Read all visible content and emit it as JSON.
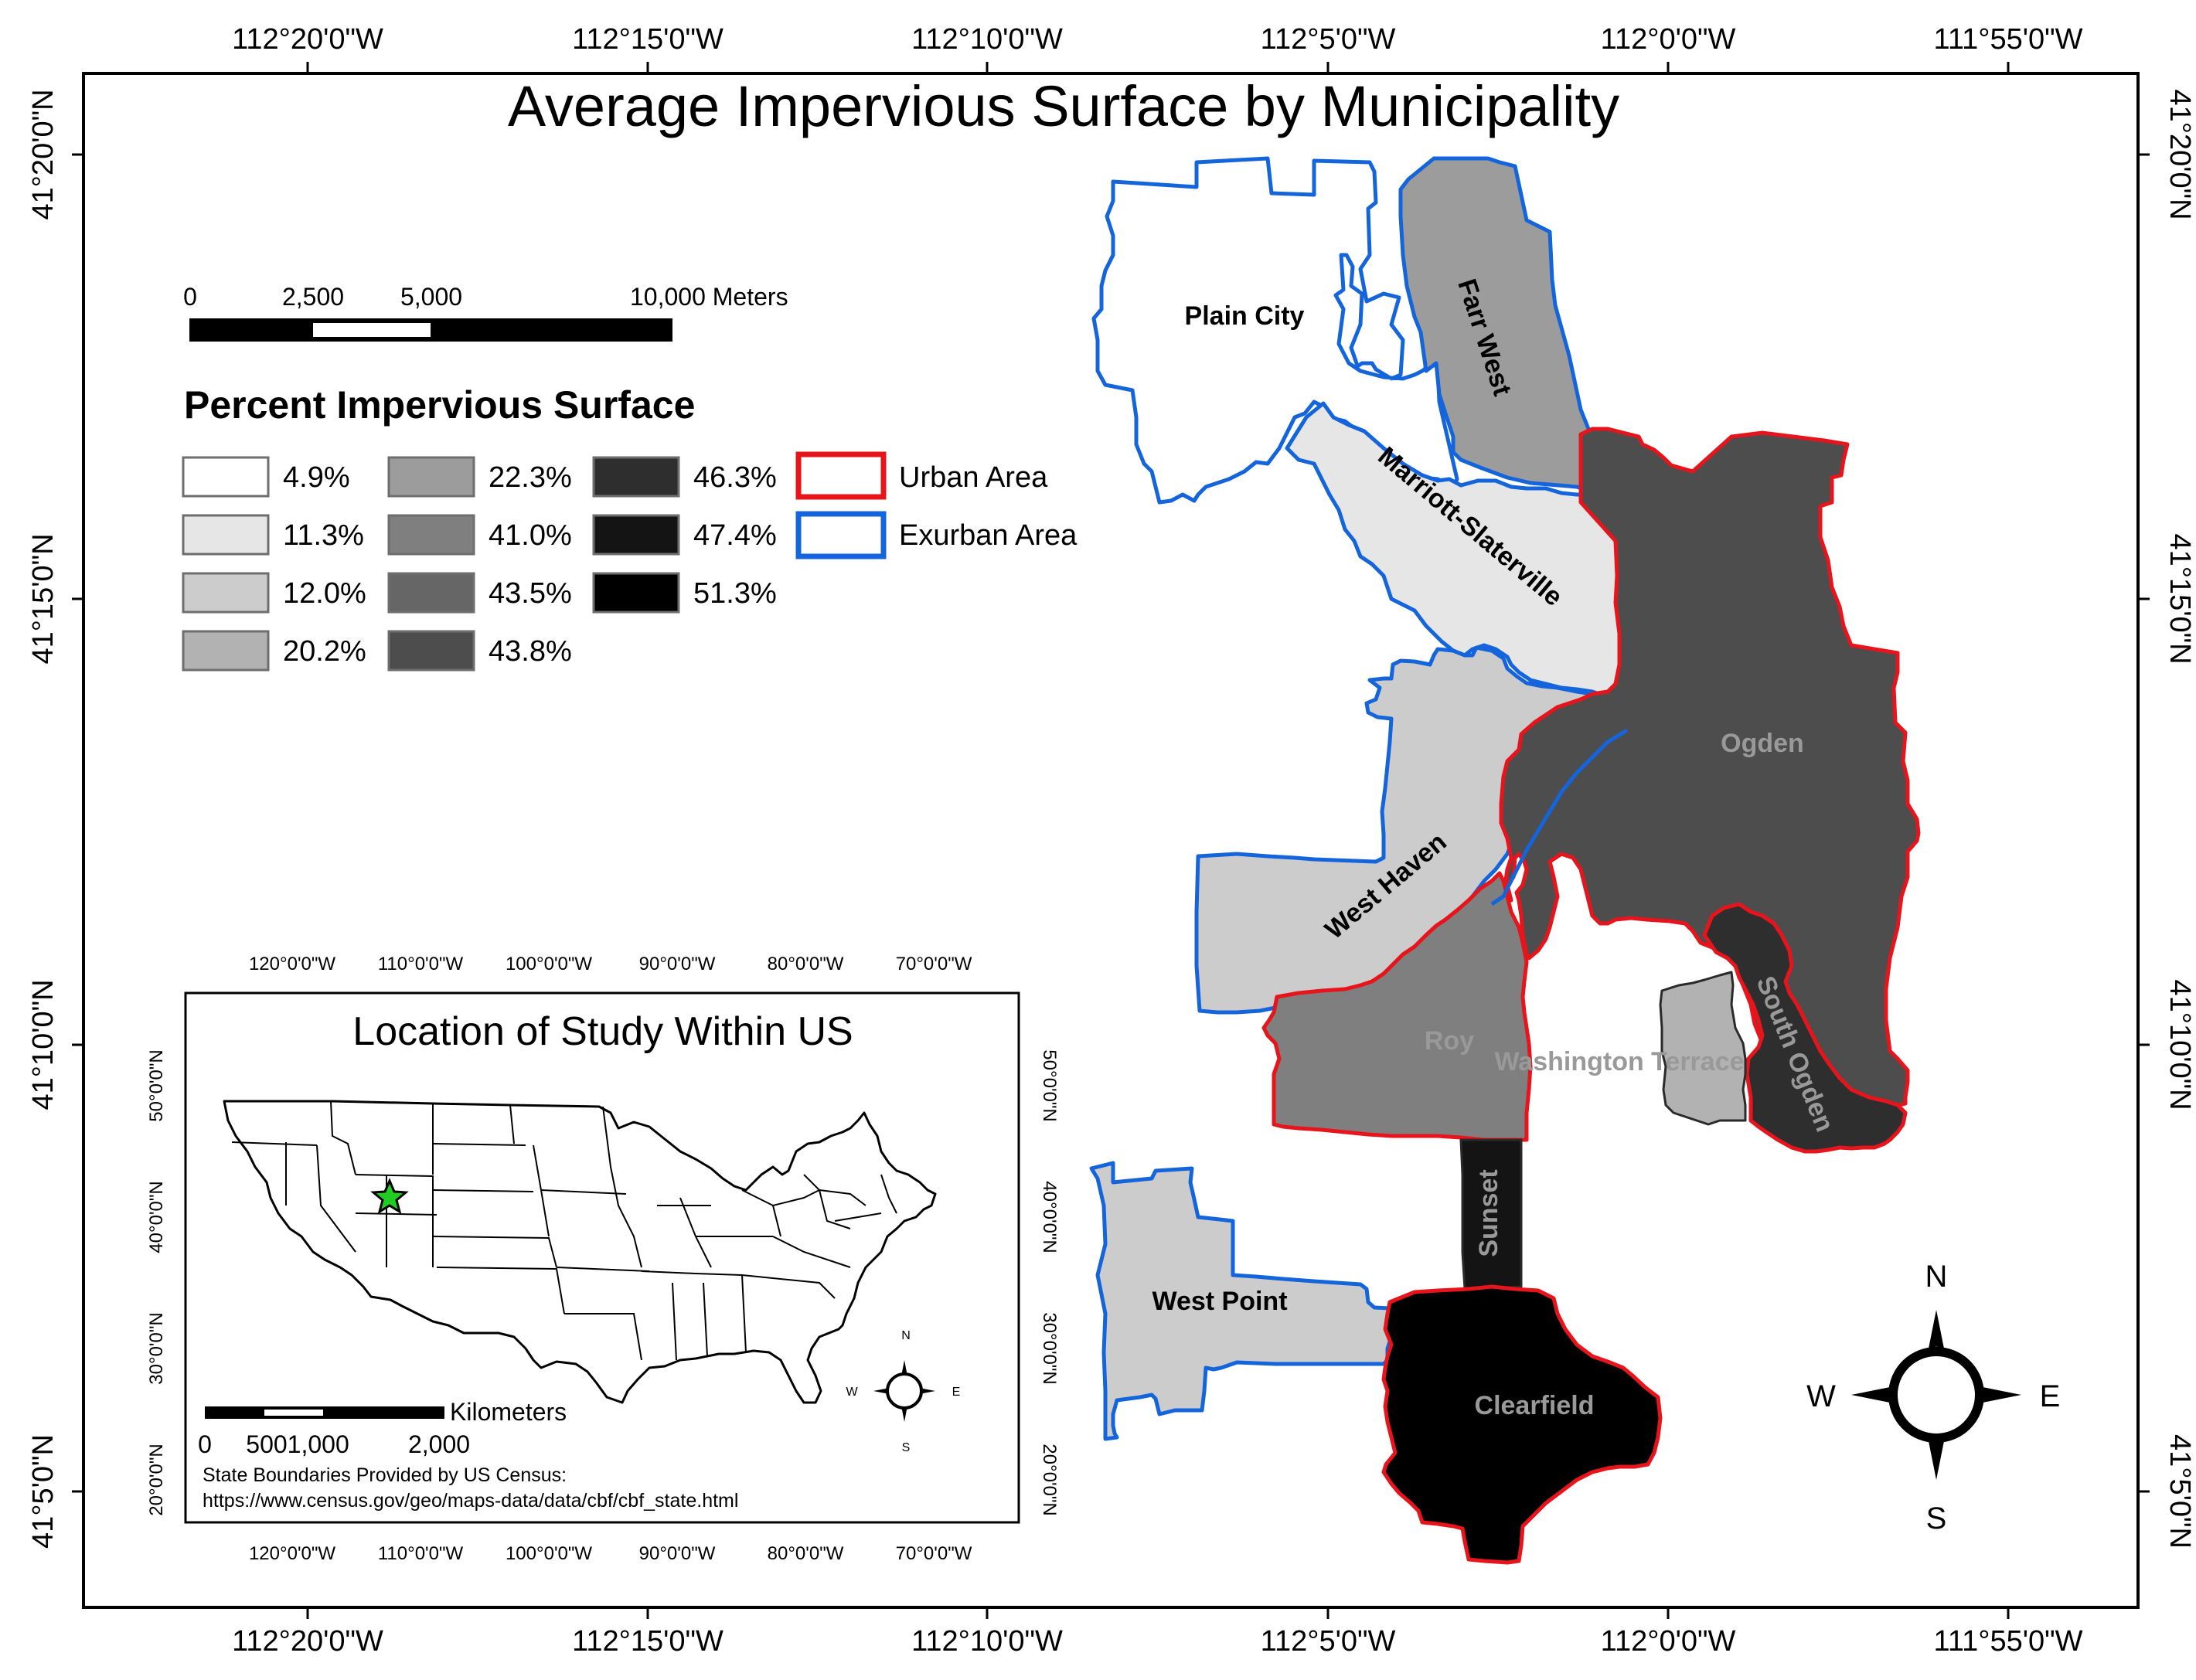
{
  "title": "Average Impervious Surface by Municipality",
  "graticule": {
    "top_labels": [
      "112°20'0\"W",
      "112°15'0\"W",
      "112°10'0\"W",
      "112°5'0\"W",
      "112°0'0\"W",
      "111°55'0\"W"
    ],
    "bottom_labels": [
      "112°20'0\"W",
      "112°15'0\"W",
      "112°10'0\"W",
      "112°5'0\"W",
      "112°0'0\"W",
      "111°55'0\"W"
    ],
    "left_labels": [
      "41°20'0\"N",
      "41°15'0\"N",
      "41°10'0\"N",
      "41°5'0\"N"
    ],
    "right_labels": [
      "41°20'0\"N",
      "41°15'0\"N",
      "41°10'0\"N",
      "41°5'0\"N"
    ]
  },
  "scale_bar": {
    "ticks": [
      "0",
      "2,500",
      "5,000",
      "10,000 Meters"
    ]
  },
  "legend": {
    "title": "Percent Impervious Surface",
    "classes": [
      {
        "label": "4.9%",
        "color": "#ffffff"
      },
      {
        "label": "11.3%",
        "color": "#e6e6e6"
      },
      {
        "label": "12.0%",
        "color": "#cccccc"
      },
      {
        "label": "20.2%",
        "color": "#b2b2b2"
      },
      {
        "label": "22.3%",
        "color": "#9c9c9c"
      },
      {
        "label": "41.0%",
        "color": "#7f7f7f"
      },
      {
        "label": "43.5%",
        "color": "#666666"
      },
      {
        "label": "43.8%",
        "color": "#4d4d4d"
      },
      {
        "label": "46.3%",
        "color": "#2e2e2e"
      },
      {
        "label": "47.4%",
        "color": "#141414"
      },
      {
        "label": "51.3%",
        "color": "#000000"
      }
    ],
    "outlines": [
      {
        "label": "Urban Area",
        "color": "#e8141c"
      },
      {
        "label": "Exurban Area",
        "color": "#1464dc"
      }
    ]
  },
  "municipalities": {
    "plain_city": "Plain City",
    "farr_west": "Farr West",
    "marriott": "Marriott-Slaterville",
    "ogden": "Ogden",
    "west_haven": "West Haven",
    "roy": "Roy",
    "washington_terrace": "Washington Terrace",
    "south_ogden": "South Ogden",
    "sunset": "Sunset",
    "west_point": "West Point",
    "clearfield": "Clearfield"
  },
  "compass": {
    "n": "N",
    "s": "S",
    "e": "E",
    "w": "W"
  },
  "inset": {
    "title": "Location of Study Within US",
    "top_labels": [
      "120°0'0\"W",
      "110°0'0\"W",
      "100°0'0\"W",
      "90°0'0\"W",
      "80°0'0\"W",
      "70°0'0\"W"
    ],
    "bottom_labels": [
      "120°0'0\"W",
      "110°0'0\"W",
      "100°0'0\"W",
      "90°0'0\"W",
      "80°0'0\"W",
      "70°0'0\"W"
    ],
    "left_labels": [
      "50°0'0\"N",
      "40°0'0\"N",
      "30°0'0\"N",
      "20°0'0\"N"
    ],
    "right_labels": [
      "50°0'0\"N",
      "40°0'0\"N",
      "30°0'0\"N",
      "20°0'0\"N"
    ],
    "scale_unit": "Kilometers",
    "scale_ticks": [
      "0",
      "5001,000",
      "2,000"
    ],
    "credit_line1": "State Boundaries Provided by US Census:",
    "credit_line2": "https://www.census.gov/geo/maps-data/data/cbf/cbf_state.html",
    "compass": {
      "n": "N",
      "s": "S",
      "e": "E",
      "w": "W"
    },
    "star_color": "#22cc22"
  }
}
